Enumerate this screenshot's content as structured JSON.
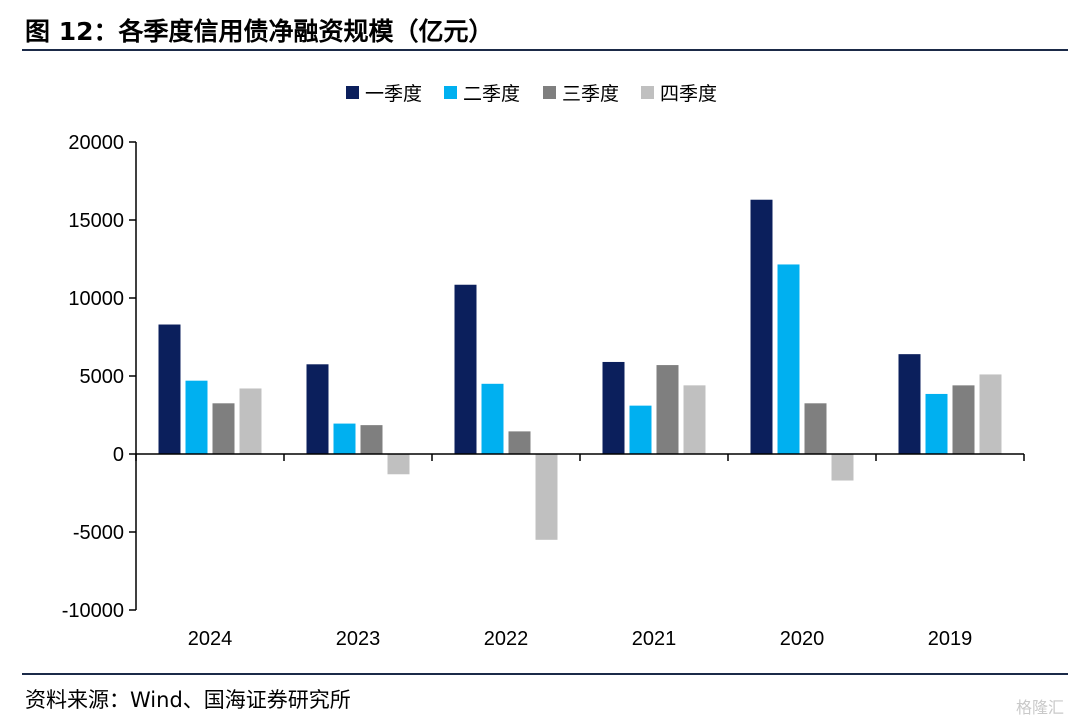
{
  "figure": {
    "title": "图 12：各季度信用债净融资规模（亿元）",
    "source": "资料来源：Wind、国海证券研究所",
    "watermark": "格隆汇"
  },
  "chart_data": {
    "type": "bar",
    "categories": [
      "2024",
      "2023",
      "2022",
      "2021",
      "2020",
      "2019"
    ],
    "series": [
      {
        "name": "一季度",
        "color": "#0b1f5c",
        "values": [
          8300,
          5750,
          10850,
          5900,
          16300,
          6400
        ]
      },
      {
        "name": "二季度",
        "color": "#00b0f0",
        "values": [
          4700,
          1950,
          4500,
          3100,
          12150,
          3850
        ]
      },
      {
        "name": "三季度",
        "color": "#7f7f7f",
        "values": [
          3250,
          1850,
          1450,
          5700,
          3250,
          4400
        ]
      },
      {
        "name": "四季度",
        "color": "#c0c0c0",
        "values": [
          4200,
          -1300,
          -5500,
          4400,
          -1700,
          5100
        ]
      }
    ],
    "ylim": [
      -10000,
      20000
    ],
    "yticks": [
      20000,
      15000,
      10000,
      5000,
      0,
      -5000,
      -10000
    ],
    "xlabel": "",
    "ylabel": "",
    "grid": false,
    "legend": "top-center"
  }
}
